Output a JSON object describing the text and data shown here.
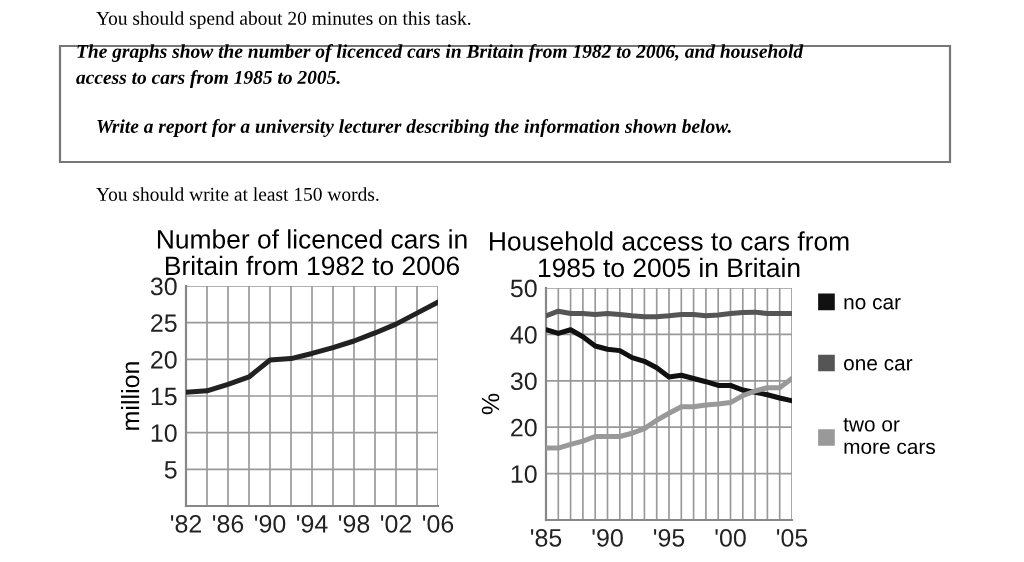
{
  "chart_data": [
    {
      "type": "other",
      "annotations": [
        "You should spend about 20 minutes on this task.",
        "The graphs show the number of licenced cars in Britain from 1982 to 2006, and household\naccess to cars from 1985 to 2005.",
        "Write a report for a university lecturer describing the information shown below.",
        "You should write at least 150 words."
      ]
    },
    {
      "type": "line",
      "title": "Number of licenced cars in\nBritain from 1982 to 2006",
      "ylabel": "million",
      "x": [
        1982,
        1984,
        1986,
        1988,
        1990,
        1992,
        1994,
        1996,
        1998,
        2000,
        2002,
        2004,
        2006
      ],
      "series": [
        {
          "color": "#222222",
          "values": [
            15.5,
            15.7,
            16.6,
            17.6,
            19.9,
            20.1,
            20.8,
            21.6,
            22.5,
            23.6,
            24.8,
            26.3,
            27.8
          ]
        }
      ],
      "xlim": [
        1982,
        2006
      ],
      "xticks": [
        {
          "value": 1982,
          "label": "'82"
        },
        {
          "value": 1984,
          "label": null
        },
        {
          "value": 1986,
          "label": "'86"
        },
        {
          "value": 1988,
          "label": null
        },
        {
          "value": 1990,
          "label": "'90"
        },
        {
          "value": 1992,
          "label": null
        },
        {
          "value": 1994,
          "label": "'94"
        },
        {
          "value": 1996,
          "label": null
        },
        {
          "value": 1998,
          "label": "'98"
        },
        {
          "value": 2000,
          "label": null
        },
        {
          "value": 2002,
          "label": "'02"
        },
        {
          "value": 2004,
          "label": null
        },
        {
          "value": 2006,
          "label": "'06"
        }
      ],
      "ylim": [
        0,
        30
      ],
      "yticks": [
        5,
        10,
        15,
        20,
        25,
        30
      ],
      "grid": true,
      "legend": false
    },
    {
      "type": "line",
      "title": "Household access to cars from\n1985 to 2005 in Britain",
      "ylabel": "%",
      "x": [
        1985,
        1986,
        1987,
        1988,
        1989,
        1990,
        1991,
        1992,
        1993,
        1994,
        1995,
        1996,
        1997,
        1998,
        1999,
        2000,
        2001,
        2002,
        2003,
        2004,
        2005
      ],
      "series": [
        {
          "name": "no car",
          "color": "#111111",
          "values": [
            41,
            40.2,
            41,
            39.5,
            37.5,
            36.8,
            36.5,
            35,
            34.2,
            32.8,
            30.8,
            31.2,
            30.5,
            29.8,
            29,
            29,
            28,
            27.5,
            27,
            26.3,
            25.7
          ]
        },
        {
          "name": "one car",
          "color": "#555555",
          "values": [
            44,
            45,
            44.5,
            44.5,
            44.3,
            44.5,
            44.3,
            44,
            43.8,
            43.8,
            44,
            44.3,
            44.3,
            44,
            44.2,
            44.5,
            44.7,
            44.8,
            44.5,
            44.5,
            44.5
          ]
        },
        {
          "name": "two or\nmore cars",
          "color": "#999999",
          "values": [
            15.5,
            15.5,
            16.3,
            17,
            18,
            18,
            18,
            18.7,
            19.7,
            21.5,
            23,
            24.4,
            24.4,
            24.8,
            25,
            25.3,
            26.8,
            27.8,
            28.5,
            28.5,
            30.5
          ]
        }
      ],
      "xlim": [
        1985,
        2005
      ],
      "xticks": [
        {
          "value": 1985,
          "label": "'85"
        },
        {
          "value": 1986,
          "label": null
        },
        {
          "value": 1987,
          "label": null
        },
        {
          "value": 1988,
          "label": null
        },
        {
          "value": 1989,
          "label": null
        },
        {
          "value": 1990,
          "label": "'90"
        },
        {
          "value": 1991,
          "label": null
        },
        {
          "value": 1992,
          "label": null
        },
        {
          "value": 1993,
          "label": null
        },
        {
          "value": 1994,
          "label": null
        },
        {
          "value": 1995,
          "label": "'95"
        },
        {
          "value": 1996,
          "label": null
        },
        {
          "value": 1997,
          "label": null
        },
        {
          "value": 1998,
          "label": null
        },
        {
          "value": 1999,
          "label": null
        },
        {
          "value": 2000,
          "label": "'00"
        },
        {
          "value": 2001,
          "label": null
        },
        {
          "value": 2002,
          "label": null
        },
        {
          "value": 2003,
          "label": null
        },
        {
          "value": 2004,
          "label": null
        },
        {
          "value": 2005,
          "label": "'05"
        }
      ],
      "ylim": [
        0,
        50
      ],
      "yticks": [
        10,
        20,
        30,
        40,
        50
      ],
      "grid": true,
      "legend": "right"
    }
  ]
}
